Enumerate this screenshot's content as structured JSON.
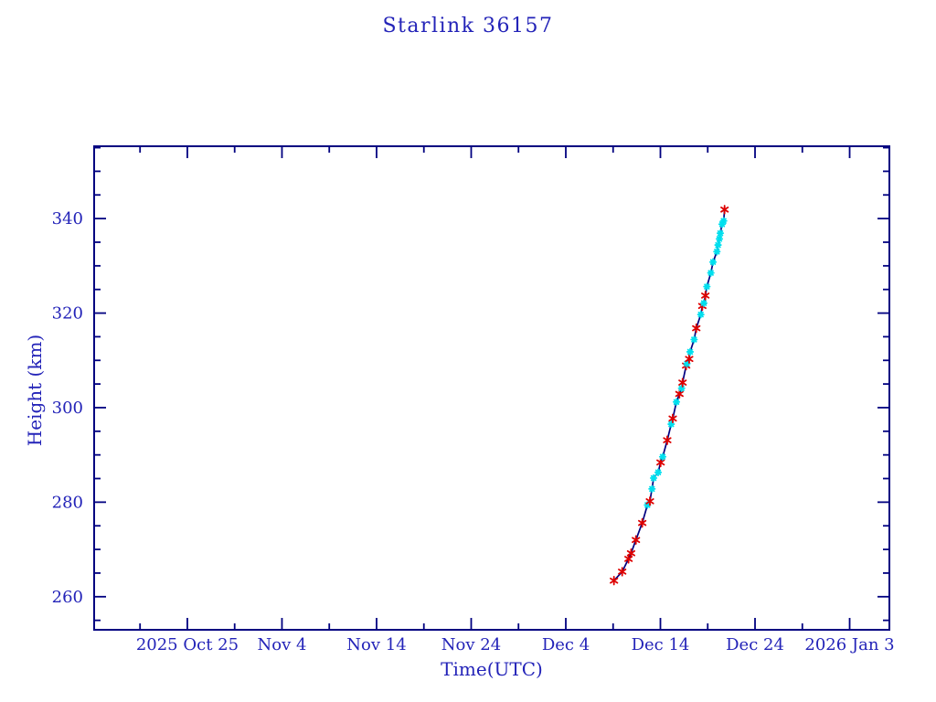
{
  "page": {
    "background": "#ffffff"
  },
  "chart_data": {
    "type": "line",
    "title": "Starlink 36157",
    "xlabel": "Time(UTC)",
    "ylabel": "Height (km)",
    "x_unit": "days after 2025 Oct 25",
    "xlim": [
      -9.85,
      74.2
    ],
    "ylim": [
      253,
      355.3
    ],
    "grid": false,
    "legend": "none",
    "axis_color": "#000080",
    "text_color": "#2323b8",
    "line_color": "#000080",
    "marker_colors": {
      "red": "#dd0000",
      "cyan": "#00dfee"
    },
    "x_major_ticks": [
      {
        "t": 0,
        "label": "2025 Oct 25"
      },
      {
        "t": 10,
        "label": "Nov 4"
      },
      {
        "t": 20,
        "label": "Nov 14"
      },
      {
        "t": 30,
        "label": "Nov 24"
      },
      {
        "t": 40,
        "label": "Dec 4"
      },
      {
        "t": 50,
        "label": "Dec 14"
      },
      {
        "t": 60,
        "label": "Dec 24"
      },
      {
        "t": 70,
        "label": "2026 Jan 3"
      }
    ],
    "x_minor_ticks": [
      -5,
      5,
      15,
      25,
      35,
      45,
      55,
      65
    ],
    "y_major_ticks": [
      {
        "v": 260,
        "label": "260"
      },
      {
        "v": 280,
        "label": "280"
      },
      {
        "v": 300,
        "label": "300"
      },
      {
        "v": 320,
        "label": "320"
      },
      {
        "v": 340,
        "label": "340"
      }
    ],
    "y_minor_ticks": [
      255,
      265,
      270,
      275,
      285,
      290,
      295,
      305,
      310,
      315,
      325,
      330,
      335,
      345,
      350,
      355
    ],
    "points": [
      {
        "t": 45.09,
        "h": 263.4,
        "m": "red"
      },
      {
        "t": 45.96,
        "h": 265.3,
        "m": "red"
      },
      {
        "t": 46.63,
        "h": 268.0,
        "m": "red"
      },
      {
        "t": 46.9,
        "h": 269.2,
        "m": "red"
      },
      {
        "t": 47.41,
        "h": 272.0,
        "m": "red"
      },
      {
        "t": 48.08,
        "h": 275.6,
        "m": "red"
      },
      {
        "t": 48.63,
        "h": 279.4,
        "m": "cyan"
      },
      {
        "t": 48.89,
        "h": 280.2,
        "m": "red"
      },
      {
        "t": 49.11,
        "h": 282.8,
        "m": "cyan"
      },
      {
        "t": 49.28,
        "h": 285.1,
        "m": "cyan"
      },
      {
        "t": 49.76,
        "h": 286.3,
        "m": "cyan"
      },
      {
        "t": 50.02,
        "h": 288.4,
        "m": "red"
      },
      {
        "t": 50.24,
        "h": 289.6,
        "m": "cyan"
      },
      {
        "t": 50.72,
        "h": 293.1,
        "m": "red"
      },
      {
        "t": 51.14,
        "h": 296.5,
        "m": "cyan"
      },
      {
        "t": 51.3,
        "h": 297.7,
        "m": "red"
      },
      {
        "t": 51.69,
        "h": 301.2,
        "m": "cyan"
      },
      {
        "t": 52.01,
        "h": 302.9,
        "m": "red"
      },
      {
        "t": 52.24,
        "h": 304.1,
        "m": "cyan"
      },
      {
        "t": 52.34,
        "h": 305.3,
        "m": "red"
      },
      {
        "t": 52.72,
        "h": 308.9,
        "m": "red"
      },
      {
        "t": 52.8,
        "h": 309.3,
        "m": "cyan"
      },
      {
        "t": 53.04,
        "h": 310.3,
        "m": "red"
      },
      {
        "t": 53.14,
        "h": 311.8,
        "m": "cyan"
      },
      {
        "t": 53.56,
        "h": 314.4,
        "m": "cyan"
      },
      {
        "t": 53.79,
        "h": 316.8,
        "m": "red"
      },
      {
        "t": 54.27,
        "h": 319.7,
        "m": "cyan"
      },
      {
        "t": 54.43,
        "h": 321.5,
        "m": "red"
      },
      {
        "t": 54.59,
        "h": 322.1,
        "m": "cyan"
      },
      {
        "t": 54.75,
        "h": 323.7,
        "m": "red"
      },
      {
        "t": 54.91,
        "h": 325.6,
        "m": "cyan"
      },
      {
        "t": 55.33,
        "h": 328.5,
        "m": "cyan"
      },
      {
        "t": 55.56,
        "h": 330.8,
        "m": "cyan"
      },
      {
        "t": 55.97,
        "h": 333.0,
        "m": "cyan"
      },
      {
        "t": 56.09,
        "h": 334.4,
        "m": "cyan"
      },
      {
        "t": 56.23,
        "h": 335.7,
        "m": "cyan"
      },
      {
        "t": 56.33,
        "h": 336.9,
        "m": "cyan"
      },
      {
        "t": 56.52,
        "h": 338.8,
        "m": "cyan"
      },
      {
        "t": 56.68,
        "h": 339.5,
        "m": "cyan"
      },
      {
        "t": 56.78,
        "h": 341.9,
        "m": "red"
      }
    ]
  }
}
